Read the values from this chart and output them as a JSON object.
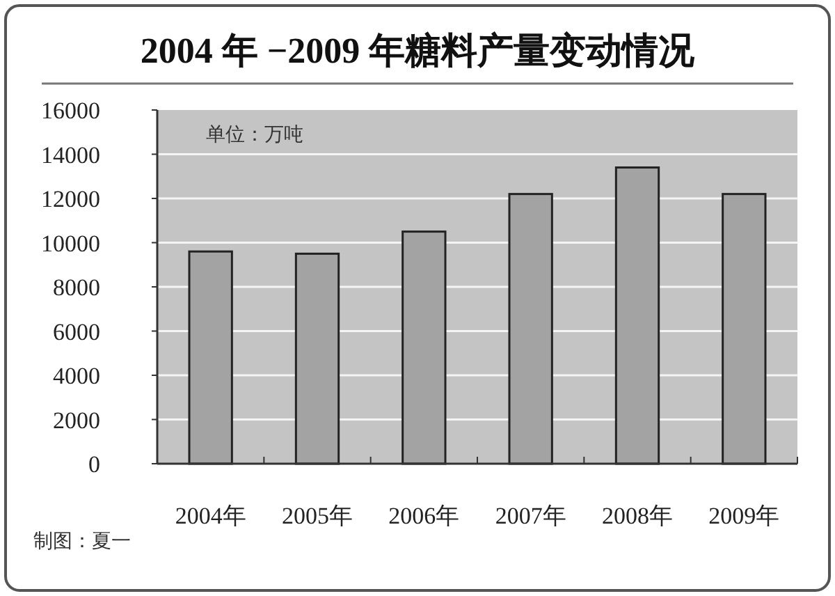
{
  "chart_data": {
    "type": "bar",
    "title": "2004 年 −2009 年糖料产量变动情况",
    "categories": [
      "2004年",
      "2005年",
      "2006年",
      "2007年",
      "2008年",
      "2009年"
    ],
    "values": [
      9600,
      9500,
      10500,
      12200,
      13400,
      12200
    ],
    "color": "#a3a3a3",
    "ylim": [
      0,
      16000
    ],
    "yticks": [
      0,
      2000,
      4000,
      6000,
      8000,
      10000,
      12000,
      14000,
      16000
    ],
    "grid": "y",
    "annotations": [
      "单位：万吨",
      "制图：夏一"
    ]
  }
}
